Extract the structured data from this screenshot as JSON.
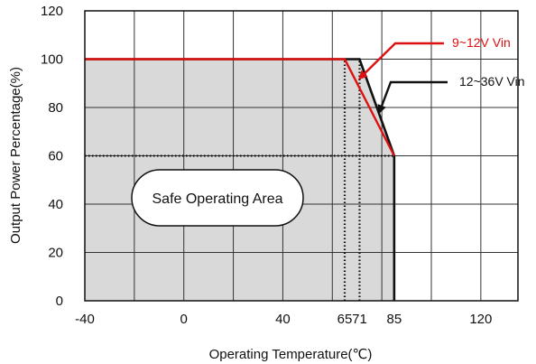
{
  "chart_data": {
    "type": "line",
    "xlabel": "Operating Temperature(℃)",
    "ylabel": "Output Power Percentage(%)",
    "x_ticks": [
      -40,
      0,
      40,
      65,
      71,
      85,
      120
    ],
    "y_ticks": [
      0,
      20,
      40,
      60,
      80,
      100,
      120
    ],
    "xlim": [
      -40,
      135
    ],
    "ylim": [
      0,
      120
    ],
    "grid": true,
    "safe_area_label": "Safe Operating Area",
    "series": [
      {
        "name": "12~36V Vin",
        "color": "#111111",
        "x": [
          -40,
          71,
          85,
          85
        ],
        "y": [
          100,
          100,
          60,
          0
        ]
      },
      {
        "name": "9~12V Vin",
        "color": "#dd1111",
        "x": [
          -40,
          65,
          85
        ],
        "y": [
          100,
          100,
          60
        ]
      }
    ],
    "reference_lines": [
      {
        "axis": "y",
        "value": 60,
        "x_range": [
          -40,
          85
        ],
        "style": "dotted"
      },
      {
        "axis": "x",
        "value": 65,
        "y_range": [
          0,
          100
        ],
        "style": "dotted"
      },
      {
        "axis": "x",
        "value": 71,
        "y_range": [
          0,
          100
        ],
        "style": "dotted"
      }
    ],
    "annotations": [
      {
        "text": "9~12V Vin",
        "color": "#dd1111",
        "points_to": [
          71,
          92
        ]
      },
      {
        "text": "12~36V Vin",
        "color": "#111111",
        "points_to": [
          79,
          78
        ]
      }
    ]
  }
}
